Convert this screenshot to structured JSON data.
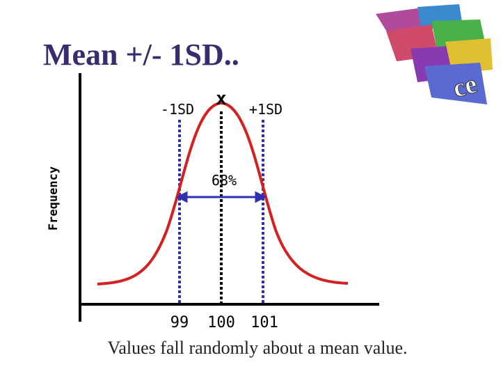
{
  "title": "Mean +/- 1SD..",
  "y_axis_label": "Frequency",
  "markers": {
    "minus": "-1SD",
    "mean": "x",
    "plus": "+1SD"
  },
  "range_label": "68%",
  "x_labels": [
    "99",
    "100",
    "101"
  ],
  "caption": "Values fall randomly about a mean value."
}
